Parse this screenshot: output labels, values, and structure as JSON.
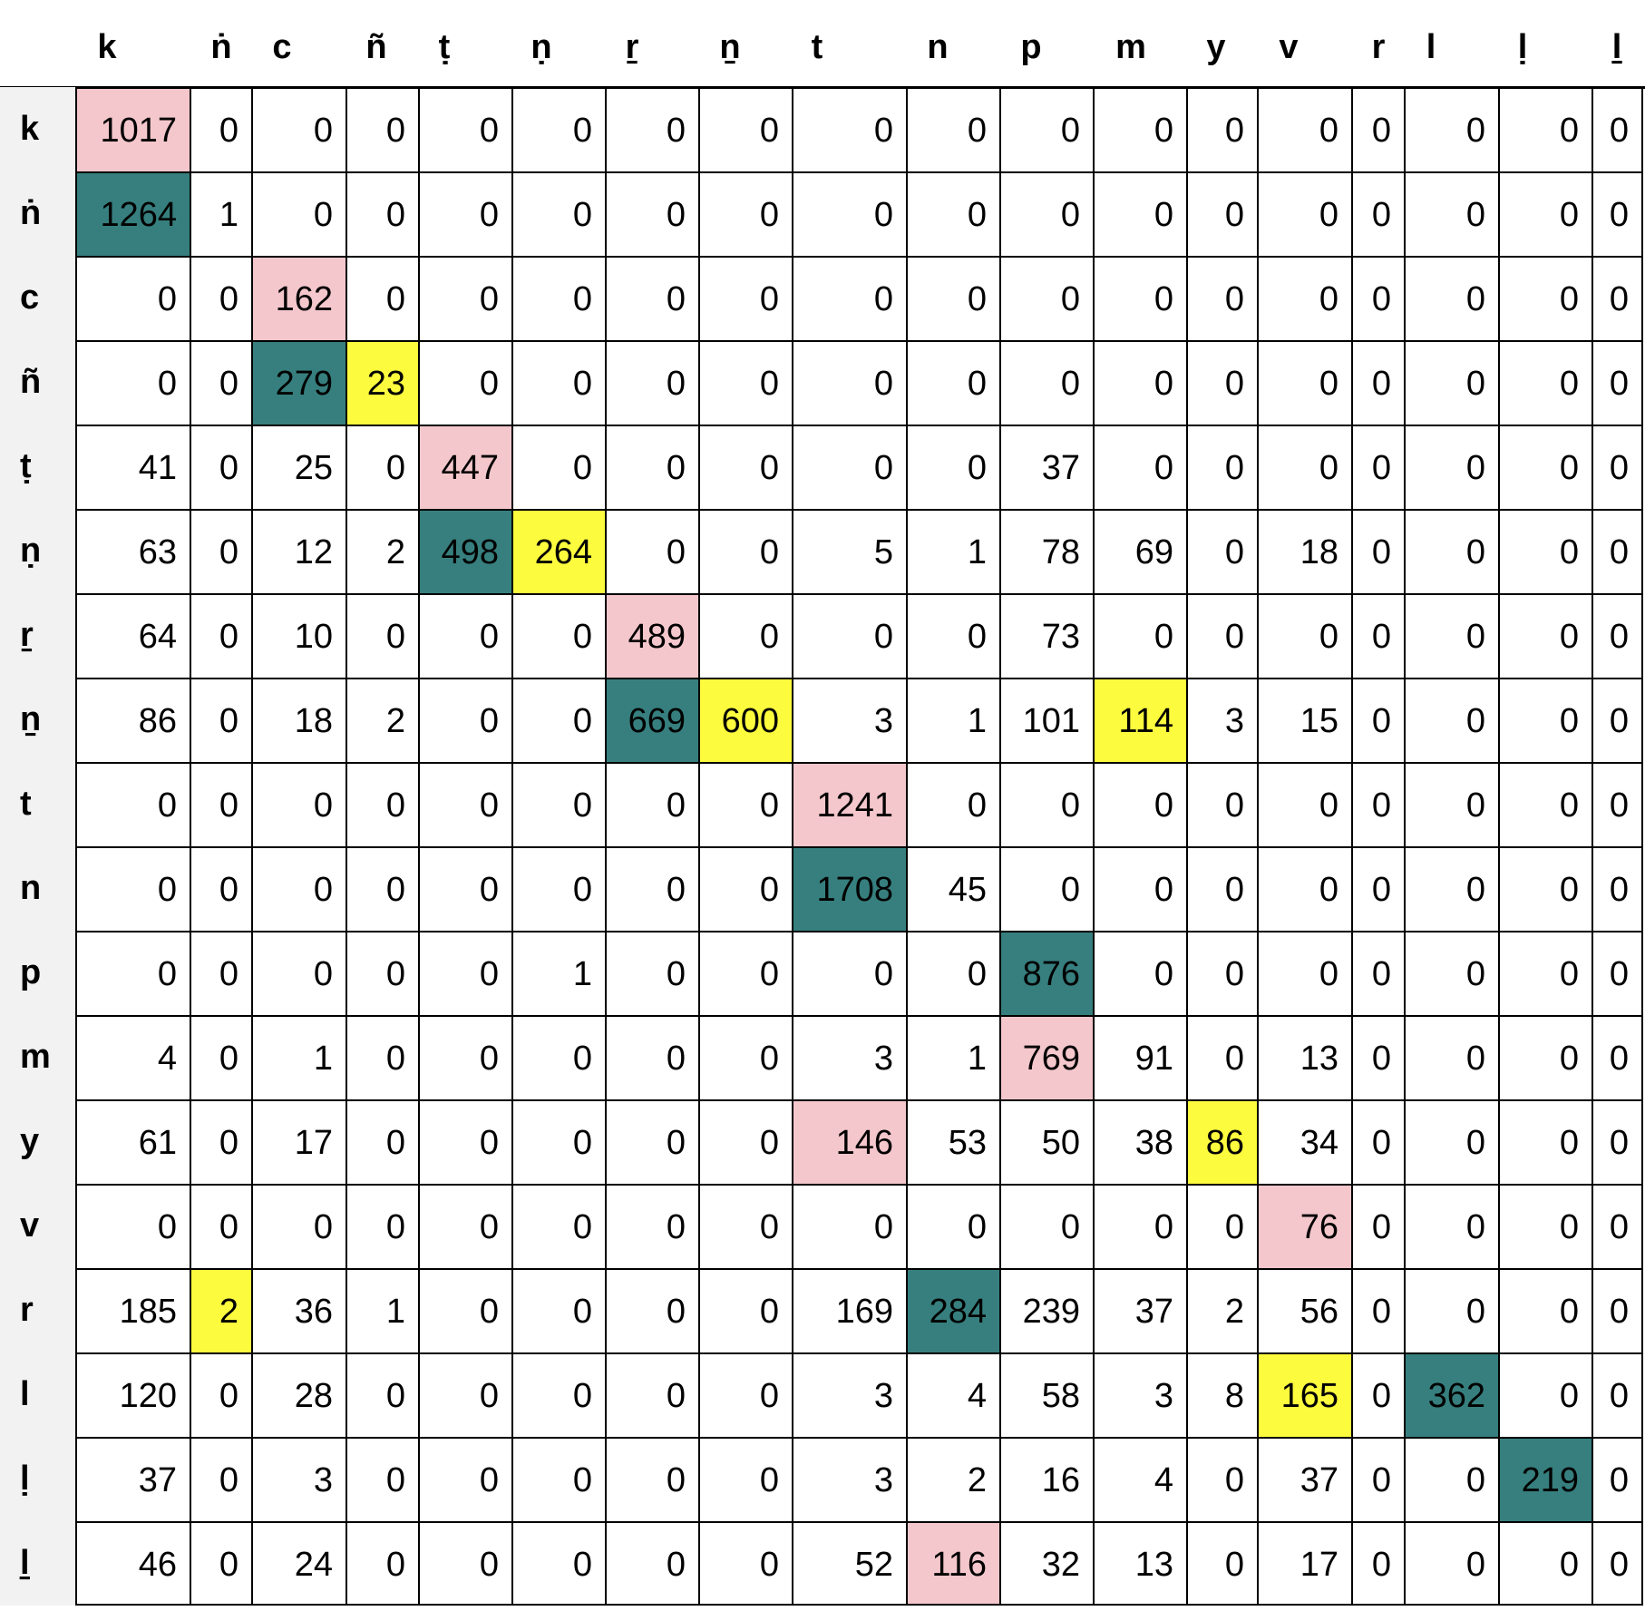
{
  "colors": {
    "pink": "#f4c7cc",
    "teal": "#367f7e",
    "yellow": "#fdfb3e",
    "border": "#000000"
  },
  "columns": [
    "k",
    "ṅ",
    "c",
    "ñ",
    "ṭ",
    "ṇ",
    "ṟ",
    "ṉ",
    "t",
    "n",
    "p",
    "m",
    "y",
    "v",
    "r",
    "l",
    "ḷ",
    "ḻ"
  ],
  "rows": [
    {
      "label": "k",
      "values": [
        "1017",
        "0",
        "0",
        "0",
        "0",
        "0",
        "0",
        "0",
        "0",
        "0",
        "0",
        "0",
        "0",
        "0",
        "0",
        "0",
        "0",
        "0"
      ],
      "highlights": {
        "0": "pink"
      }
    },
    {
      "label": "ṅ",
      "values": [
        "1264",
        "1",
        "0",
        "0",
        "0",
        "0",
        "0",
        "0",
        "0",
        "0",
        "0",
        "0",
        "0",
        "0",
        "0",
        "0",
        "0",
        "0"
      ],
      "highlights": {
        "0": "teal"
      }
    },
    {
      "label": "c",
      "values": [
        "0",
        "0",
        "162",
        "0",
        "0",
        "0",
        "0",
        "0",
        "0",
        "0",
        "0",
        "0",
        "0",
        "0",
        "0",
        "0",
        "0",
        "0"
      ],
      "highlights": {
        "2": "pink"
      }
    },
    {
      "label": "ñ",
      "values": [
        "0",
        "0",
        "279",
        "23",
        "0",
        "0",
        "0",
        "0",
        "0",
        "0",
        "0",
        "0",
        "0",
        "0",
        "0",
        "0",
        "0",
        "0"
      ],
      "highlights": {
        "2": "teal",
        "3": "yellow"
      }
    },
    {
      "label": "ṭ",
      "values": [
        "41",
        "0",
        "25",
        "0",
        "447",
        "0",
        "0",
        "0",
        "0",
        "0",
        "37",
        "0",
        "0",
        "0",
        "0",
        "0",
        "0",
        "0"
      ],
      "highlights": {
        "4": "pink"
      }
    },
    {
      "label": "ṇ",
      "values": [
        "63",
        "0",
        "12",
        "2",
        "498",
        "264",
        "0",
        "0",
        "5",
        "1",
        "78",
        "69",
        "0",
        "18",
        "0",
        "0",
        "0",
        "0"
      ],
      "highlights": {
        "4": "teal",
        "5": "yellow"
      }
    },
    {
      "label": "ṟ",
      "values": [
        "64",
        "0",
        "10",
        "0",
        "0",
        "0",
        "489",
        "0",
        "0",
        "0",
        "73",
        "0",
        "0",
        "0",
        "0",
        "0",
        "0",
        "0"
      ],
      "highlights": {
        "6": "pink"
      }
    },
    {
      "label": "ṉ",
      "values": [
        "86",
        "0",
        "18",
        "2",
        "0",
        "0",
        "669",
        "600",
        "3",
        "1",
        "101",
        "114",
        "3",
        "15",
        "0",
        "0",
        "0",
        "0"
      ],
      "highlights": {
        "6": "teal",
        "7": "yellow",
        "11": "yellow"
      }
    },
    {
      "label": "t",
      "values": [
        "0",
        "0",
        "0",
        "0",
        "0",
        "0",
        "0",
        "0",
        "1241",
        "0",
        "0",
        "0",
        "0",
        "0",
        "0",
        "0",
        "0",
        "0"
      ],
      "highlights": {
        "8": "pink"
      }
    },
    {
      "label": "n",
      "values": [
        "0",
        "0",
        "0",
        "0",
        "0",
        "0",
        "0",
        "0",
        "1708",
        "45",
        "0",
        "0",
        "0",
        "0",
        "0",
        "0",
        "0",
        "0"
      ],
      "highlights": {
        "8": "teal"
      }
    },
    {
      "label": "p",
      "values": [
        "0",
        "0",
        "0",
        "0",
        "0",
        "1",
        "0",
        "0",
        "0",
        "0",
        "876",
        "0",
        "0",
        "0",
        "0",
        "0",
        "0",
        "0"
      ],
      "highlights": {
        "10": "teal"
      }
    },
    {
      "label": "m",
      "values": [
        "4",
        "0",
        "1",
        "0",
        "0",
        "0",
        "0",
        "0",
        "3",
        "1",
        "769",
        "91",
        "0",
        "13",
        "0",
        "0",
        "0",
        "0"
      ],
      "highlights": {
        "10": "pink"
      }
    },
    {
      "label": "y",
      "values": [
        "61",
        "0",
        "17",
        "0",
        "0",
        "0",
        "0",
        "0",
        "146",
        "53",
        "50",
        "38",
        "86",
        "34",
        "0",
        "0",
        "0",
        "0"
      ],
      "highlights": {
        "8": "pink",
        "12": "yellow"
      }
    },
    {
      "label": "v",
      "values": [
        "0",
        "0",
        "0",
        "0",
        "0",
        "0",
        "0",
        "0",
        "0",
        "0",
        "0",
        "0",
        "0",
        "76",
        "0",
        "0",
        "0",
        "0"
      ],
      "highlights": {
        "13": "pink"
      }
    },
    {
      "label": "r",
      "values": [
        "185",
        "2",
        "36",
        "1",
        "0",
        "0",
        "0",
        "0",
        "169",
        "284",
        "239",
        "37",
        "2",
        "56",
        "0",
        "0",
        "0",
        "0"
      ],
      "highlights": {
        "1": "yellow",
        "9": "teal"
      }
    },
    {
      "label": "l",
      "values": [
        "120",
        "0",
        "28",
        "0",
        "0",
        "0",
        "0",
        "0",
        "3",
        "4",
        "58",
        "3",
        "8",
        "165",
        "0",
        "362",
        "0",
        "0"
      ],
      "highlights": {
        "13": "yellow",
        "15": "teal"
      }
    },
    {
      "label": "ḷ",
      "values": [
        "37",
        "0",
        "3",
        "0",
        "0",
        "0",
        "0",
        "0",
        "3",
        "2",
        "16",
        "4",
        "0",
        "37",
        "0",
        "0",
        "219",
        "0"
      ],
      "highlights": {
        "16": "teal"
      }
    },
    {
      "label": "ḻ",
      "values": [
        "46",
        "0",
        "24",
        "0",
        "0",
        "0",
        "0",
        "0",
        "52",
        "116",
        "32",
        "13",
        "0",
        "17",
        "0",
        "0",
        "0",
        "0"
      ],
      "highlights": {
        "9": "pink"
      }
    }
  ]
}
